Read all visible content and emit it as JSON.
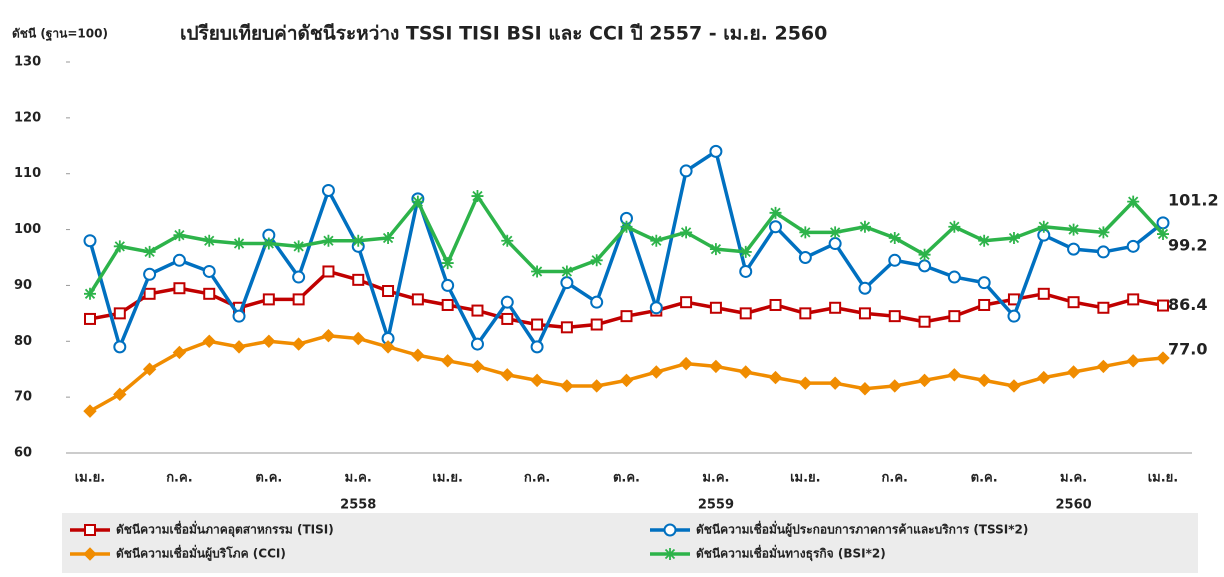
{
  "chart_data": {
    "type": "line",
    "title": "เปรียบเทียบค่าดัชนีระหว่าง TSSI TISI BSI และ CCI ปี 2557 - เม.ย. 2560",
    "y_label": "ดัชนี (ฐาน=100)",
    "categories": [
      "เม.ย.",
      null,
      null,
      "ก.ค.",
      null,
      null,
      "ต.ค.",
      null,
      null,
      "ม.ค.",
      null,
      null,
      "เม.ย.",
      null,
      null,
      "ก.ค.",
      null,
      null,
      "ต.ค.",
      null,
      null,
      "ม.ค.",
      null,
      null,
      "เม.ย.",
      null,
      null,
      "ก.ค.",
      null,
      null,
      "ต.ค.",
      null,
      null,
      "ม.ค.",
      null,
      null,
      "เม.ย."
    ],
    "years": [
      "2558",
      "2559",
      "2560"
    ],
    "ylim": [
      60,
      130
    ],
    "yticks": [
      60,
      70,
      80,
      90,
      100,
      110,
      120,
      130
    ],
    "legend": "bottom",
    "series": [
      {
        "name": "ดัชนีความเชื่อมั่นภาคอุตสาหกรรม (TISI)",
        "color": "#c00000",
        "marker": "square",
        "values": [
          84,
          85,
          88.5,
          89.5,
          88.5,
          86,
          87.5,
          87.5,
          92.5,
          91,
          89,
          87.5,
          86.5,
          85.5,
          84,
          83,
          82.5,
          83,
          84.5,
          85.5,
          87,
          86,
          85,
          86.5,
          85,
          86,
          85,
          84.5,
          83.5,
          84.5,
          86.5,
          87.5,
          88.5,
          87,
          86,
          87.5,
          86.4
        ]
      },
      {
        "name": "ดัชนีความเชื่อมั่นผู้ประกอบการภาคการค้าและบริการ (TSSI*2)",
        "color": "#0070c0",
        "marker": "circle",
        "values": [
          98,
          79,
          92,
          94.5,
          92.5,
          84.5,
          99,
          91.5,
          107,
          97,
          80.5,
          105.5,
          90,
          79.5,
          87,
          79,
          90.5,
          87,
          102,
          86,
          110.5,
          114,
          92.5,
          100.5,
          95,
          97.5,
          89.5,
          94.5,
          93.5,
          91.5,
          90.5,
          84.5,
          99,
          96.5,
          96,
          97,
          101.2
        ]
      },
      {
        "name": "ดัชนีความเชื่อมั่นผู้บริโภค (CCI)",
        "color": "#f08c00",
        "marker": "diamond",
        "values": [
          67.5,
          70.5,
          75,
          78,
          80,
          79,
          80,
          79.5,
          81,
          80.5,
          79,
          77.5,
          76.5,
          75.5,
          74,
          73,
          72,
          72,
          73,
          74.5,
          76,
          75.5,
          74.5,
          73.5,
          72.5,
          72.5,
          71.5,
          72,
          73,
          74,
          73,
          72,
          73.5,
          74.5,
          75.5,
          76.5,
          77
        ],
        "value_labels": [
          null,
          null,
          null,
          null,
          null,
          null,
          null,
          null,
          null,
          null,
          null,
          null,
          null,
          null,
          null,
          null,
          null,
          null,
          null,
          null,
          null,
          null,
          null,
          null,
          null,
          null,
          null,
          null,
          null,
          null,
          null,
          null,
          null,
          null,
          null,
          null,
          "77.0"
        ]
      },
      {
        "name": "ดัชนีความเชื่อมั่นทางธุรกิจ (BSI*2)",
        "color": "#2db34a",
        "marker": "star",
        "values": [
          88.5,
          97,
          96,
          99,
          98,
          97.5,
          97.5,
          97,
          98,
          98,
          98.5,
          105,
          94,
          106,
          98,
          92.5,
          92.5,
          94.5,
          100.5,
          98,
          99.5,
          96.5,
          96,
          103,
          99.5,
          99.5,
          100.5,
          98.5,
          95.5,
          100.5,
          98,
          98.5,
          100.5,
          100,
          99.5,
          105,
          99.2
        ]
      }
    ]
  }
}
